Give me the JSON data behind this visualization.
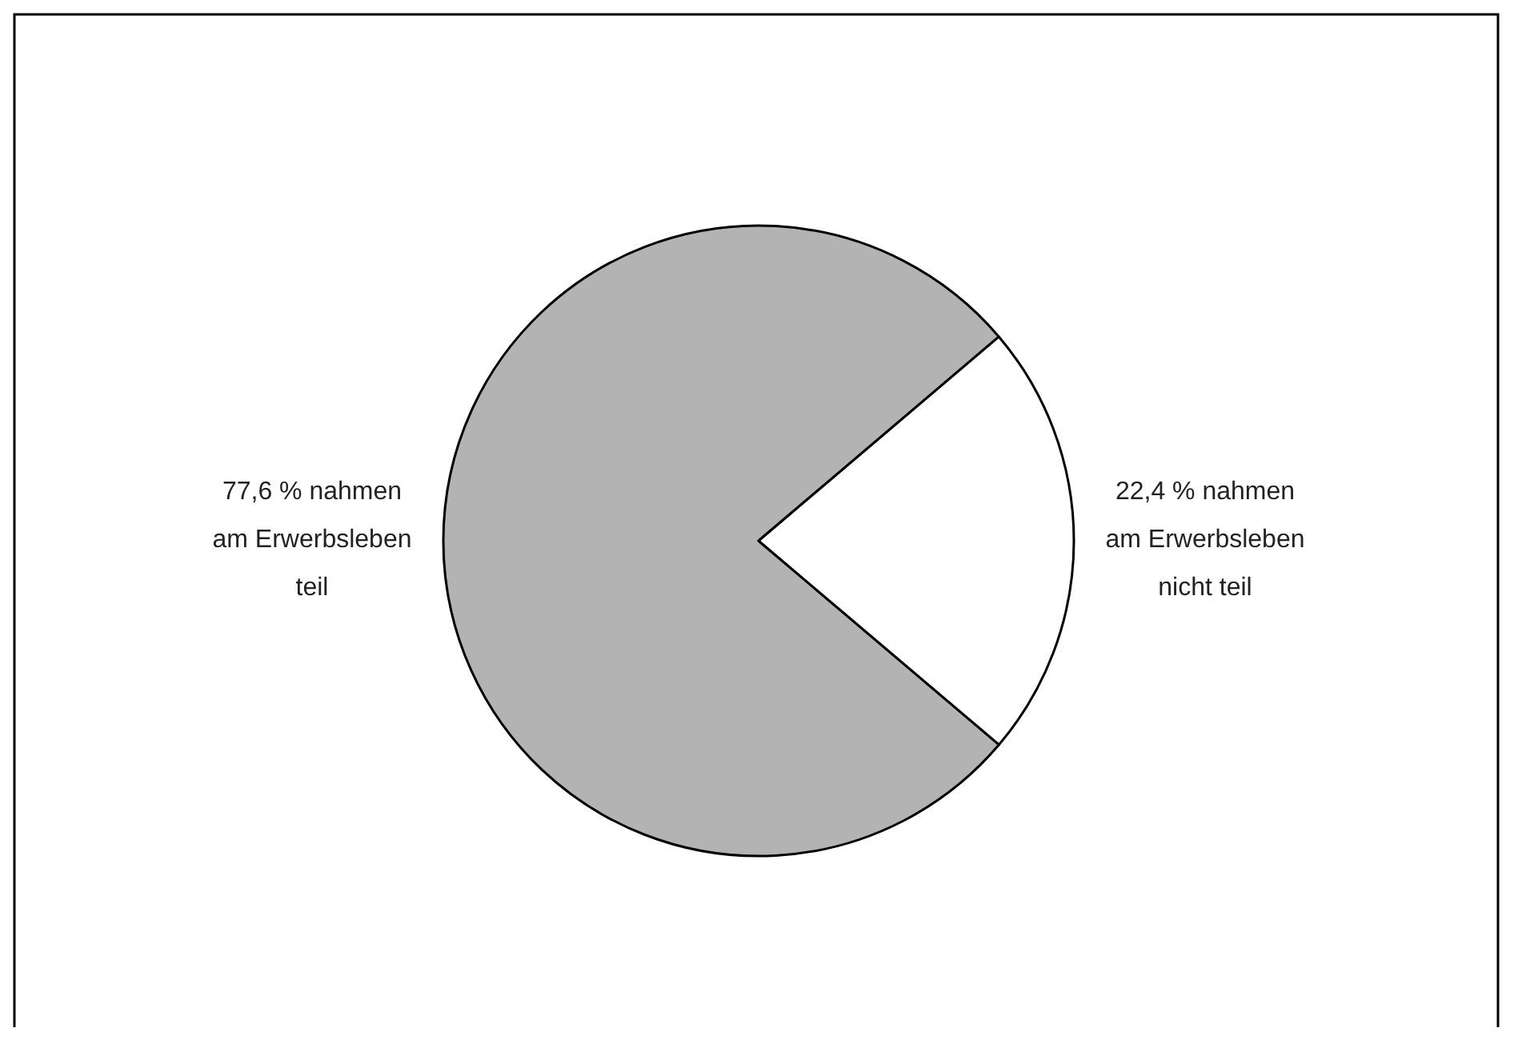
{
  "chart_data": {
    "type": "pie",
    "categories": [
      "77,6 % nahmen am Erwerbsleben teil",
      "22,4 % nahmen am Erwerbsleben nicht teil"
    ],
    "values": [
      77.6,
      22.4
    ],
    "colors": [
      "#b3b3b3",
      "#ffffff"
    ]
  }
}
